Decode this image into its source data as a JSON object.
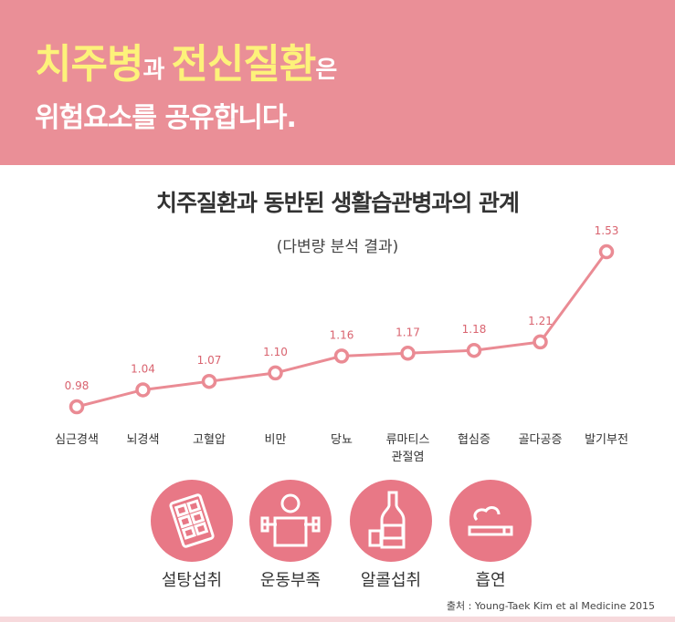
{
  "header": {
    "line1": [
      {
        "text": "치주병",
        "style": "big"
      },
      {
        "text": "과 ",
        "style": "small"
      },
      {
        "text": "전신질환",
        "style": "big"
      },
      {
        "text": "은",
        "style": "small"
      }
    ],
    "line2": "위험요소를 공유합니다."
  },
  "chart_data": {
    "type": "line",
    "title": "치주질환과 동반된 생활습관병과의 관계",
    "subtitle": "(다변량 분석 결과)",
    "categories": [
      "심근경색",
      "뇌경색",
      "고혈압",
      "비만",
      "당뇨",
      "류마티스\n관절염",
      "협심증",
      "골다공증",
      "발기부전"
    ],
    "values": [
      0.98,
      1.04,
      1.07,
      1.1,
      1.16,
      1.17,
      1.18,
      1.21,
      1.53
    ],
    "value_labels": [
      "0.98",
      "1.04",
      "1.07",
      "1.10",
      "1.16",
      "1.17",
      "1.18",
      "1.21",
      "1.53"
    ],
    "color": "#ea8b94",
    "grid": false,
    "legend": "none"
  },
  "icons": [
    {
      "name": "chocolate-icon",
      "label": "설탕섭취"
    },
    {
      "name": "dumbbell-person-icon",
      "label": "운동부족"
    },
    {
      "name": "alcohol-icon",
      "label": "알콜섭취"
    },
    {
      "name": "cigarette-icon",
      "label": "흡연"
    }
  ],
  "source": "출처 : Young-Taek Kim et al Medicine 2015"
}
